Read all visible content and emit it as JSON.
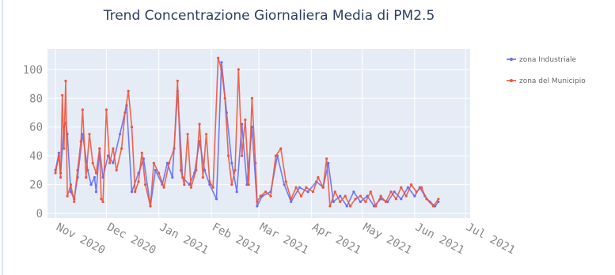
{
  "chart_data": {
    "type": "line",
    "title": "Trend Concentrazione Giornaliera Media di PM2.5",
    "xlabel": "",
    "ylabel": "",
    "x_range": [
      "2020-10-31",
      "2021-06-30"
    ],
    "x_ticks": [
      "Nov 2020",
      "Dec 2020",
      "Jan 2021",
      "Feb 2021",
      "Mar 2021",
      "Apr 2021",
      "May 2021",
      "Jun 2021",
      "Jul 2021"
    ],
    "ylim": [
      0,
      112
    ],
    "y_ticks": [
      0,
      20,
      40,
      60,
      80,
      100
    ],
    "grid": true,
    "legend_position": "top-right",
    "series": [
      {
        "name": "zona Industriale",
        "color": "#636efa",
        "points": [
          [
            "2020-11-01",
            30
          ],
          [
            "2020-11-03",
            42
          ],
          [
            "2020-11-04",
            28
          ],
          [
            "2020-11-06",
            60
          ],
          [
            "2020-11-07",
            63
          ],
          [
            "2020-11-08",
            55
          ],
          [
            "2020-11-10",
            15
          ],
          [
            "2020-11-12",
            10
          ],
          [
            "2020-11-14",
            25
          ],
          [
            "2020-11-17",
            55
          ],
          [
            "2020-11-20",
            30
          ],
          [
            "2020-11-22",
            20
          ],
          [
            "2020-11-24",
            25
          ],
          [
            "2020-11-25",
            15
          ],
          [
            "2020-11-27",
            45
          ],
          [
            "2020-11-29",
            25
          ],
          [
            "2020-12-02",
            40
          ],
          [
            "2020-12-05",
            35
          ],
          [
            "2020-12-09",
            55
          ],
          [
            "2020-12-13",
            75
          ],
          [
            "2020-12-16",
            15
          ],
          [
            "2020-12-20",
            28
          ],
          [
            "2020-12-23",
            38
          ],
          [
            "2020-12-27",
            5
          ],
          [
            "2020-12-30",
            30
          ],
          [
            "2021-01-03",
            20
          ],
          [
            "2021-01-06",
            35
          ],
          [
            "2021-01-09",
            25
          ],
          [
            "2021-01-12",
            85
          ],
          [
            "2021-01-15",
            25
          ],
          [
            "2021-01-19",
            20
          ],
          [
            "2021-01-22",
            28
          ],
          [
            "2021-01-25",
            50
          ],
          [
            "2021-01-28",
            30
          ],
          [
            "2021-01-31",
            20
          ],
          [
            "2021-02-04",
            10
          ],
          [
            "2021-02-07",
            105
          ],
          [
            "2021-02-10",
            70
          ],
          [
            "2021-02-13",
            35
          ],
          [
            "2021-02-16",
            15
          ],
          [
            "2021-02-19",
            62
          ],
          [
            "2021-02-22",
            20
          ],
          [
            "2021-02-25",
            60
          ],
          [
            "2021-02-28",
            5
          ],
          [
            "2021-03-03",
            12
          ],
          [
            "2021-03-08",
            15
          ],
          [
            "2021-03-12",
            40
          ],
          [
            "2021-03-16",
            20
          ],
          [
            "2021-03-20",
            8
          ],
          [
            "2021-03-25",
            18
          ],
          [
            "2021-03-30",
            15
          ],
          [
            "2021-04-04",
            22
          ],
          [
            "2021-04-08",
            18
          ],
          [
            "2021-04-11",
            35
          ],
          [
            "2021-04-14",
            8
          ],
          [
            "2021-04-18",
            12
          ],
          [
            "2021-04-22",
            5
          ],
          [
            "2021-04-26",
            15
          ],
          [
            "2021-04-30",
            8
          ],
          [
            "2021-05-04",
            12
          ],
          [
            "2021-05-08",
            5
          ],
          [
            "2021-05-12",
            10
          ],
          [
            "2021-05-16",
            8
          ],
          [
            "2021-05-20",
            15
          ],
          [
            "2021-05-24",
            10
          ],
          [
            "2021-05-28",
            18
          ],
          [
            "2021-06-01",
            12
          ],
          [
            "2021-06-04",
            18
          ],
          [
            "2021-06-07",
            12
          ],
          [
            "2021-06-10",
            8
          ],
          [
            "2021-06-13",
            5
          ],
          [
            "2021-06-15",
            8
          ]
        ]
      },
      {
        "name": "zona del Municipio",
        "color": "#ef553b",
        "points": [
          [
            "2020-11-01",
            28
          ],
          [
            "2020-11-03",
            40
          ],
          [
            "2020-11-04",
            25
          ],
          [
            "2020-11-05",
            82
          ],
          [
            "2020-11-06",
            45
          ],
          [
            "2020-11-07",
            92
          ],
          [
            "2020-11-08",
            12
          ],
          [
            "2020-11-10",
            20
          ],
          [
            "2020-11-12",
            8
          ],
          [
            "2020-11-14",
            30
          ],
          [
            "2020-11-16",
            50
          ],
          [
            "2020-11-17",
            72
          ],
          [
            "2020-11-19",
            25
          ],
          [
            "2020-11-21",
            55
          ],
          [
            "2020-11-23",
            35
          ],
          [
            "2020-11-25",
            28
          ],
          [
            "2020-11-27",
            45
          ],
          [
            "2020-11-28",
            10
          ],
          [
            "2020-11-29",
            8
          ],
          [
            "2020-12-01",
            72
          ],
          [
            "2020-12-03",
            35
          ],
          [
            "2020-12-05",
            45
          ],
          [
            "2020-12-07",
            30
          ],
          [
            "2020-12-10",
            45
          ],
          [
            "2020-12-12",
            70
          ],
          [
            "2020-12-14",
            85
          ],
          [
            "2020-12-16",
            60
          ],
          [
            "2020-12-18",
            15
          ],
          [
            "2020-12-20",
            22
          ],
          [
            "2020-12-22",
            42
          ],
          [
            "2020-12-24",
            20
          ],
          [
            "2020-12-27",
            5
          ],
          [
            "2020-12-29",
            35
          ],
          [
            "2021-01-01",
            28
          ],
          [
            "2021-01-04",
            18
          ],
          [
            "2021-01-07",
            35
          ],
          [
            "2021-01-10",
            45
          ],
          [
            "2021-01-12",
            92
          ],
          [
            "2021-01-14",
            30
          ],
          [
            "2021-01-16",
            20
          ],
          [
            "2021-01-18",
            55
          ],
          [
            "2021-01-20",
            18
          ],
          [
            "2021-01-23",
            30
          ],
          [
            "2021-01-25",
            62
          ],
          [
            "2021-01-27",
            25
          ],
          [
            "2021-01-29",
            55
          ],
          [
            "2021-01-31",
            22
          ],
          [
            "2021-02-02",
            18
          ],
          [
            "2021-02-05",
            108
          ],
          [
            "2021-02-07",
            100
          ],
          [
            "2021-02-09",
            80
          ],
          [
            "2021-02-11",
            40
          ],
          [
            "2021-02-13",
            20
          ],
          [
            "2021-02-15",
            30
          ],
          [
            "2021-02-17",
            100
          ],
          [
            "2021-02-19",
            40
          ],
          [
            "2021-02-21",
            65
          ],
          [
            "2021-02-23",
            20
          ],
          [
            "2021-02-25",
            80
          ],
          [
            "2021-02-27",
            35
          ],
          [
            "2021-02-28",
            8
          ],
          [
            "2021-03-02",
            12
          ],
          [
            "2021-03-05",
            15
          ],
          [
            "2021-03-08",
            12
          ],
          [
            "2021-03-11",
            40
          ],
          [
            "2021-03-14",
            45
          ],
          [
            "2021-03-17",
            22
          ],
          [
            "2021-03-20",
            10
          ],
          [
            "2021-03-23",
            18
          ],
          [
            "2021-03-26",
            12
          ],
          [
            "2021-03-29",
            18
          ],
          [
            "2021-04-02",
            15
          ],
          [
            "2021-04-05",
            25
          ],
          [
            "2021-04-08",
            18
          ],
          [
            "2021-04-10",
            38
          ],
          [
            "2021-04-12",
            5
          ],
          [
            "2021-04-15",
            15
          ],
          [
            "2021-04-18",
            8
          ],
          [
            "2021-04-21",
            12
          ],
          [
            "2021-04-24",
            5
          ],
          [
            "2021-04-27",
            10
          ],
          [
            "2021-04-30",
            12
          ],
          [
            "2021-05-03",
            8
          ],
          [
            "2021-05-06",
            15
          ],
          [
            "2021-05-09",
            5
          ],
          [
            "2021-05-12",
            12
          ],
          [
            "2021-05-15",
            8
          ],
          [
            "2021-05-18",
            15
          ],
          [
            "2021-05-21",
            10
          ],
          [
            "2021-05-24",
            18
          ],
          [
            "2021-05-27",
            12
          ],
          [
            "2021-05-30",
            20
          ],
          [
            "2021-06-02",
            15
          ],
          [
            "2021-06-05",
            18
          ],
          [
            "2021-06-08",
            10
          ],
          [
            "2021-06-12",
            5
          ],
          [
            "2021-06-15",
            10
          ]
        ]
      }
    ]
  }
}
